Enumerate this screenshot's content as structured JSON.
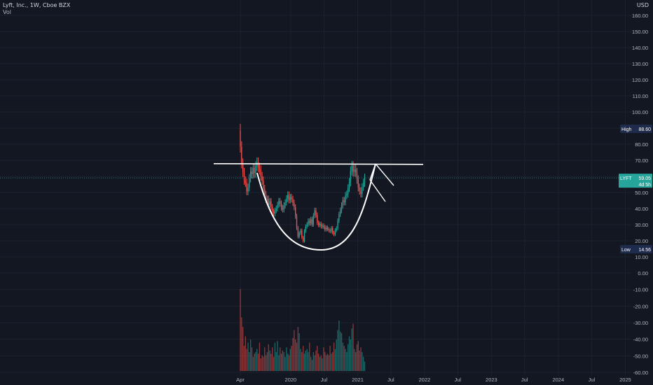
{
  "header": {
    "symbol_line": "Lyft, Inc., 1W, Cboe BZX",
    "indicator": "Vol",
    "currency": "USD"
  },
  "colors": {
    "bg": "#131722",
    "grid": "#1e222d",
    "up": "#26a69a",
    "down": "#ef5350",
    "text": "#b2b5be",
    "drawing": "#ffffff",
    "label_bg": "#1e2b4d",
    "last_bg": "#26a69a"
  },
  "chart_data": {
    "type": "candlestick",
    "price_axis": {
      "ticks": [
        10,
        20,
        30,
        40,
        50,
        60,
        70,
        80,
        90,
        100,
        110,
        120,
        130,
        140,
        150,
        160
      ],
      "ylim": [
        8,
        165
      ]
    },
    "volume_axis": {
      "ticks": [
        "0.00",
        "-10.00",
        "-20.00",
        "-30.00",
        "-40.00",
        "-50.00",
        "-60.00"
      ]
    },
    "time_axis": {
      "ticks": [
        "Apr",
        "2020",
        "Jul",
        "2021",
        "Jul",
        "2022",
        "Jul",
        "2023",
        "Jul",
        "2024",
        "Jul",
        "2025"
      ]
    },
    "high_label": {
      "tag": "High",
      "value": "88.60"
    },
    "low_label": {
      "tag": "Low",
      "value": "14.56"
    },
    "last_label": {
      "tag": "LYFT",
      "value": "59.05",
      "countdown": "4d 5h"
    },
    "start_date": "2019-04-01",
    "price_close": [
      78.3,
      68.1,
      62.5,
      57.4,
      56.0,
      50.6,
      53.1,
      58.9,
      63.0,
      61.4,
      65.2,
      62.0,
      66.4,
      68.7,
      65.5,
      64.0,
      60.1,
      57.3,
      52.4,
      48.8,
      45.5,
      46.0,
      42.3,
      44.5,
      41.0,
      38.2,
      36.8,
      38.9,
      40.1,
      42.4,
      44.6,
      43.1,
      40.5,
      39.4,
      42.0,
      43.8,
      46.2,
      48.5,
      45.3,
      47.0,
      45.9,
      43.6,
      40.8,
      35.2,
      28.0,
      22.5,
      24.8,
      26.4,
      22.1,
      19.8,
      26.0,
      28.9,
      30.2,
      32.5,
      30.8,
      33.4,
      30.1,
      35.6,
      38.8,
      36.0,
      31.2,
      29.8,
      30.5,
      28.9,
      29.5,
      28.6,
      27.0,
      28.2,
      27.3,
      26.5,
      25.9,
      27.9,
      25.0,
      24.0,
      26.6,
      27.8,
      32.5,
      36.4,
      38.9,
      42.0,
      45.2,
      44.0,
      48.1,
      49.0,
      52.7,
      56.4,
      63.4,
      66.5,
      62.7,
      64.4,
      62.5,
      58.0,
      53.1,
      50.9,
      49.1,
      53.4,
      56.0,
      59.05
    ],
    "volume": [
      52,
      34,
      28,
      16,
      22,
      14,
      18,
      12,
      20,
      15,
      9,
      11,
      12,
      14,
      11,
      18,
      8,
      10,
      9,
      15,
      10,
      12,
      17,
      13,
      11,
      15,
      9,
      18,
      12,
      19,
      10,
      15,
      11,
      13,
      12,
      9,
      15,
      11,
      10,
      14,
      16,
      21,
      26,
      20,
      18,
      28,
      24,
      14,
      12,
      16,
      11,
      13,
      14,
      12,
      18,
      9,
      7,
      12,
      10,
      13,
      16,
      11,
      9,
      10,
      8,
      15,
      12,
      10,
      11,
      10,
      16,
      11,
      12,
      18,
      14,
      20,
      26,
      32,
      25,
      24,
      18,
      16,
      14,
      12,
      17,
      22,
      20,
      27,
      30,
      14,
      12,
      17,
      19,
      13,
      15,
      12,
      9,
      6
    ],
    "annotations": [
      {
        "type": "horizontal_line",
        "price": 67.7,
        "from": "2019-04-01",
        "to": "2021-12-31"
      },
      {
        "type": "cup_curve",
        "bottom_price": 14.0
      },
      {
        "type": "wedge_lines"
      }
    ]
  }
}
